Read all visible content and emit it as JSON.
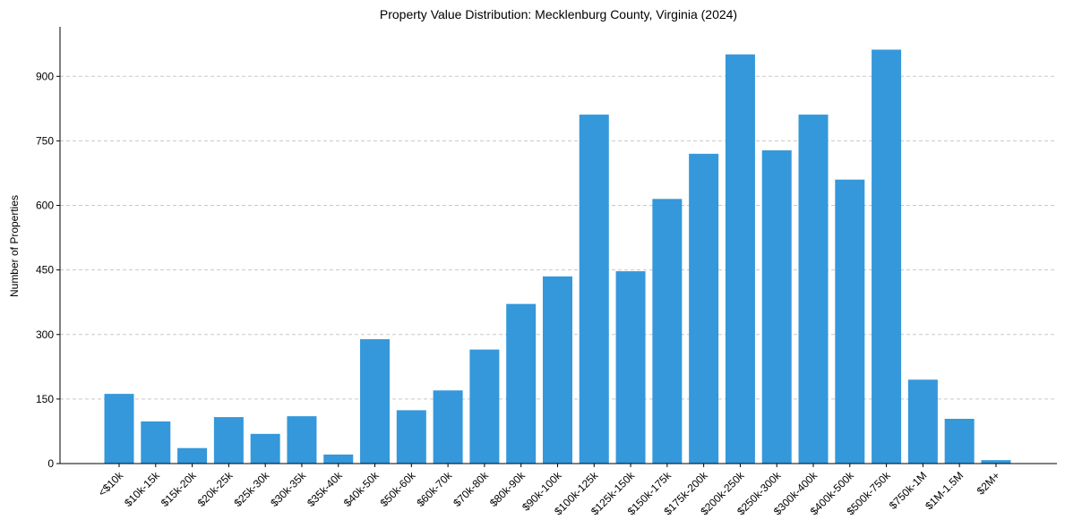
{
  "chart_data": {
    "type": "bar",
    "title": "Property Value Distribution: Mecklenburg County, Virginia (2024)",
    "xlabel": "",
    "ylabel": "Number of Properties",
    "ylim": [
      0,
      1015
    ],
    "yticks": [
      0,
      150,
      300,
      450,
      600,
      750,
      900
    ],
    "grid": "y-dashed",
    "categories": [
      "<$10k",
      "$10k-15k",
      "$15k-20k",
      "$20k-25k",
      "$25k-30k",
      "$30k-35k",
      "$35k-40k",
      "$40k-50k",
      "$50k-60k",
      "$60k-70k",
      "$70k-80k",
      "$80k-90k",
      "$90k-100k",
      "$100k-125k",
      "$125k-150k",
      "$150k-175k",
      "$175k-200k",
      "$200k-250k",
      "$250k-300k",
      "$300k-400k",
      "$400k-500k",
      "$500k-750k",
      "$750k-1M",
      "$1M-1.5M",
      "$2M+"
    ],
    "values": [
      162,
      98,
      36,
      108,
      69,
      110,
      21,
      289,
      124,
      170,
      265,
      371,
      435,
      811,
      447,
      615,
      720,
      951,
      728,
      811,
      660,
      962,
      195,
      104,
      8
    ],
    "bar_color": "#3498db"
  }
}
